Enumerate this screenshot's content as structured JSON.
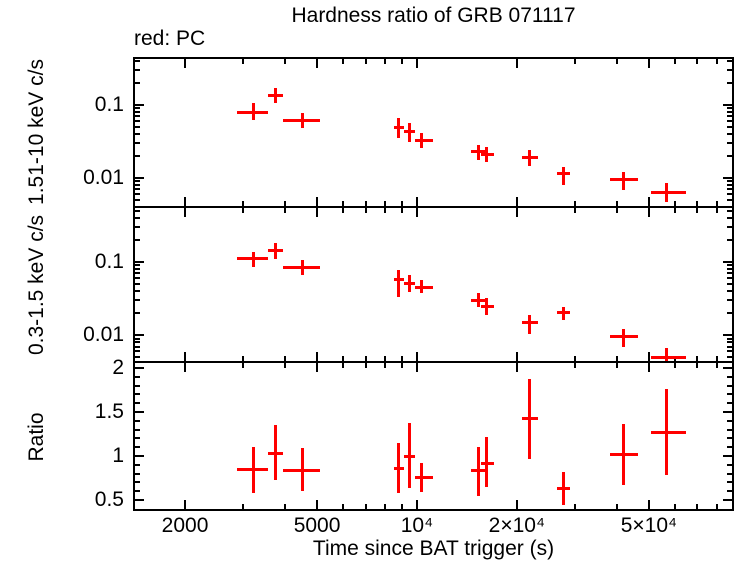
{
  "page": {
    "title": "Hardness ratio of GRB 071117",
    "subtitle": "red: PC"
  },
  "colors": {
    "data_red": "#ff0000",
    "axis_black": "#000000",
    "background": "#ffffff"
  },
  "chart_data": {
    "type": "scatter",
    "title": "Hardness ratio of GRB 071117",
    "annotation": "red: PC",
    "xlabel": "Time since BAT trigger (s)",
    "x_scale": "log",
    "xlim": [
      1394,
      90250
    ],
    "grid": false,
    "legend_position": "none",
    "series_color": "#ff0000",
    "x_major_ticks": [
      {
        "value": 2000,
        "label": "2000"
      },
      {
        "value": 5000,
        "label": "5000"
      },
      {
        "value": 10000,
        "label": "10⁴"
      },
      {
        "value": 20000,
        "label": "2×10⁴"
      },
      {
        "value": 50000,
        "label": "5×10⁴"
      }
    ],
    "time_bins": [
      {
        "t": 3210,
        "t_lo": 2870,
        "t_hi": 3560
      },
      {
        "t": 3760,
        "t_lo": 3560,
        "t_hi": 3960
      },
      {
        "t": 4530,
        "t_lo": 3960,
        "t_hi": 5100
      },
      {
        "t": 8800,
        "t_lo": 8550,
        "t_hi": 9150
      },
      {
        "t": 9500,
        "t_lo": 9150,
        "t_hi": 9850
      },
      {
        "t": 10350,
        "t_lo": 9850,
        "t_hi": 11150
      },
      {
        "t": 15300,
        "t_lo": 14600,
        "t_hi": 16000
      },
      {
        "t": 16200,
        "t_lo": 15600,
        "t_hi": 17100
      },
      {
        "t": 21800,
        "t_lo": 20700,
        "t_hi": 23200
      },
      {
        "t": 27600,
        "t_lo": 26400,
        "t_hi": 28900
      },
      {
        "t": 41900,
        "t_lo": 38300,
        "t_hi": 46400
      },
      {
        "t": 56600,
        "t_lo": 50800,
        "t_hi": 64500
      }
    ],
    "panels": [
      {
        "name": "hard_rate",
        "ylabel": "1.51-10 keV c/s",
        "scale": "log",
        "ylim": [
          0.004,
          0.455
        ],
        "y_major_ticks": [
          {
            "value": 0.1,
            "label": "0.1"
          },
          {
            "value": 0.01,
            "label": "0.01"
          }
        ],
        "points": [
          {
            "v": 0.08,
            "lo": 0.062,
            "hi": 0.107
          },
          {
            "v": 0.133,
            "lo": 0.106,
            "hi": 0.169
          },
          {
            "v": 0.062,
            "lo": 0.049,
            "hi": 0.077
          },
          {
            "v": 0.049,
            "lo": 0.035,
            "hi": 0.066
          },
          {
            "v": 0.043,
            "lo": 0.031,
            "hi": 0.057
          },
          {
            "v": 0.033,
            "lo": 0.0255,
            "hi": 0.041
          },
          {
            "v": 0.0234,
            "lo": 0.0176,
            "hi": 0.0284
          },
          {
            "v": 0.0211,
            "lo": 0.0166,
            "hi": 0.0266
          },
          {
            "v": 0.0192,
            "lo": 0.0147,
            "hi": 0.0242
          },
          {
            "v": 0.0114,
            "lo": 0.008,
            "hi": 0.0143
          },
          {
            "v": 0.0094,
            "lo": 0.0068,
            "hi": 0.0122
          },
          {
            "v": 0.0064,
            "lo": 0.0047,
            "hi": 0.0085
          }
        ]
      },
      {
        "name": "soft_rate",
        "ylabel": "0.3-1.5 keV c/s",
        "scale": "log",
        "ylim": [
          0.0043,
          0.565
        ],
        "y_major_ticks": [
          {
            "value": 0.1,
            "label": "0.1"
          },
          {
            "value": 0.01,
            "label": "0.01"
          }
        ],
        "points": [
          {
            "v": 0.11,
            "lo": 0.086,
            "hi": 0.138
          },
          {
            "v": 0.143,
            "lo": 0.11,
            "hi": 0.18
          },
          {
            "v": 0.0836,
            "lo": 0.066,
            "hi": 0.107
          },
          {
            "v": 0.0585,
            "lo": 0.033,
            "hi": 0.078
          },
          {
            "v": 0.0515,
            "lo": 0.039,
            "hi": 0.066
          },
          {
            "v": 0.0455,
            "lo": 0.0376,
            "hi": 0.0566
          },
          {
            "v": 0.0302,
            "lo": 0.0244,
            "hi": 0.0372
          },
          {
            "v": 0.0244,
            "lo": 0.0188,
            "hi": 0.0318
          },
          {
            "v": 0.0147,
            "lo": 0.0105,
            "hi": 0.0188
          },
          {
            "v": 0.0202,
            "lo": 0.016,
            "hi": 0.0244
          },
          {
            "v": 0.0095,
            "lo": 0.007,
            "hi": 0.0123
          },
          {
            "v": 0.005,
            "lo": 0.0039,
            "hi": 0.0066
          }
        ]
      },
      {
        "name": "ratio",
        "ylabel": "Ratio",
        "scale": "linear",
        "ylim": [
          0.386,
          2.068
        ],
        "y_major_ticks": [
          {
            "value": 2,
            "label": "2"
          },
          {
            "value": 1.5,
            "label": "1.5"
          },
          {
            "value": 1,
            "label": "1"
          },
          {
            "value": 0.5,
            "label": "0.5"
          }
        ],
        "points": [
          {
            "v": 0.85,
            "lo": 0.58,
            "hi": 1.1
          },
          {
            "v": 1.03,
            "lo": 0.73,
            "hi": 1.35
          },
          {
            "v": 0.83,
            "lo": 0.6,
            "hi": 1.09
          },
          {
            "v": 0.86,
            "lo": 0.58,
            "hi": 1.15
          },
          {
            "v": 0.99,
            "lo": 0.64,
            "hi": 1.38
          },
          {
            "v": 0.76,
            "lo": 0.59,
            "hi": 0.92
          },
          {
            "v": 0.83,
            "lo": 0.54,
            "hi": 1.1
          },
          {
            "v": 0.92,
            "lo": 0.65,
            "hi": 1.22
          },
          {
            "v": 1.43,
            "lo": 0.97,
            "hi": 1.88
          },
          {
            "v": 0.63,
            "lo": 0.44,
            "hi": 0.82
          },
          {
            "v": 1.02,
            "lo": 0.67,
            "hi": 1.36
          },
          {
            "v": 1.27,
            "lo": 0.78,
            "hi": 1.76
          }
        ]
      }
    ]
  }
}
